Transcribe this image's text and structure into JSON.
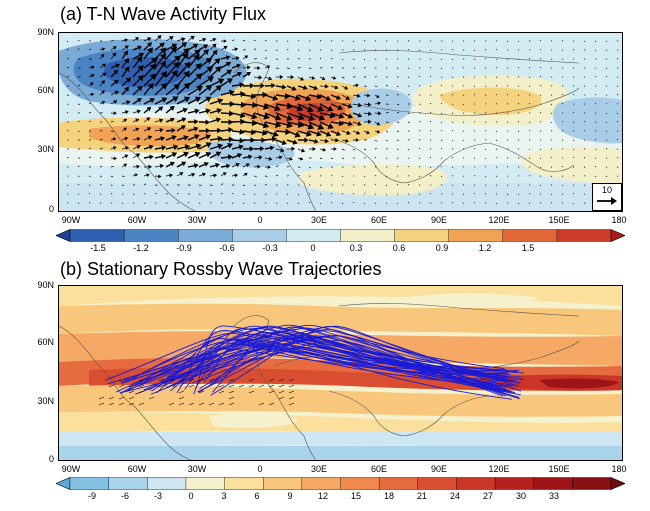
{
  "panel_a": {
    "title": "(a) T-N Wave Activity Flux",
    "lat_ticks": [
      "90N",
      "60N",
      "30N",
      "0"
    ],
    "lon_ticks": [
      "90W",
      "60W",
      "30W",
      "0",
      "30E",
      "60E",
      "90E",
      "120E",
      "150E",
      "180"
    ],
    "ref_vector_label": "10",
    "colorbar": {
      "ticks": [
        "-1.5",
        "-1.2",
        "-0.9",
        "-0.6",
        "-0.3",
        "0",
        "0.3",
        "0.6",
        "0.9",
        "1.2",
        "1.5"
      ],
      "colors": [
        "#1f3f99",
        "#2e5fb0",
        "#4b84c4",
        "#7aaad6",
        "#a9cde6",
        "#d3ebf3",
        "#f3efc8",
        "#f5d27e",
        "#f0a255",
        "#e2683a",
        "#cc3a2a",
        "#a81c1c"
      ]
    }
  },
  "panel_b": {
    "title": "(b) Stationary Rossby Wave Trajectories",
    "lat_ticks": [
      "90N",
      "60N",
      "30N",
      "0"
    ],
    "lon_ticks": [
      "90W",
      "60W",
      "30W",
      "0",
      "30E",
      "60E",
      "90E",
      "120E",
      "150E",
      "180"
    ],
    "colorbar": {
      "ticks": [
        "-9",
        "-6",
        "-3",
        "0",
        "3",
        "6",
        "9",
        "12",
        "15",
        "18",
        "21",
        "24",
        "27",
        "30",
        "33"
      ],
      "colors": [
        "#5ea8d8",
        "#84c0e2",
        "#a9d3ea",
        "#cde6f1",
        "#f5f1cc",
        "#fbdf9c",
        "#f9c77c",
        "#f5a964",
        "#ef8a4f",
        "#e66b3e",
        "#d94e31",
        "#c93527",
        "#b5211f",
        "#9c1418",
        "#861014",
        "#700c10"
      ]
    }
  },
  "colors": {
    "trajectory": "#1a1ad6",
    "vector": "#000000",
    "coast": "#555555"
  }
}
